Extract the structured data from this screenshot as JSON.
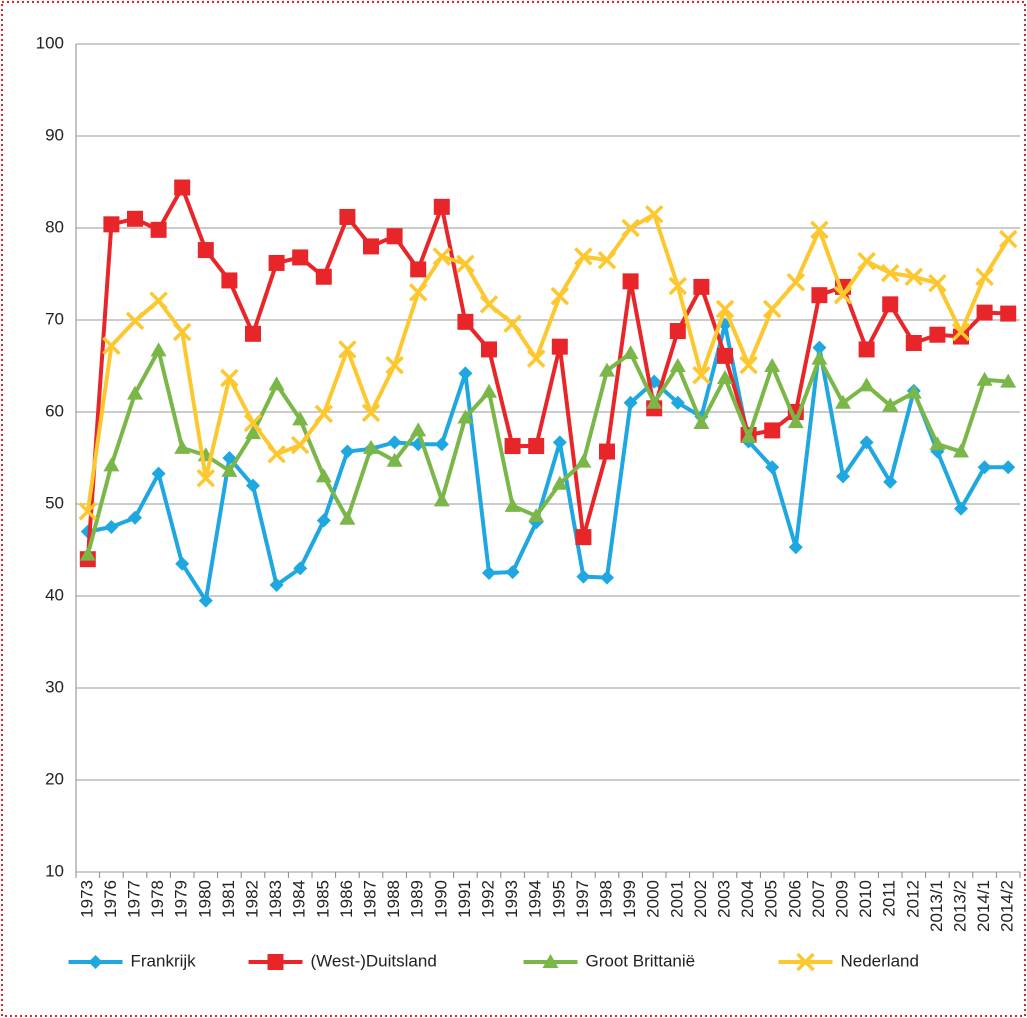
{
  "chart_data": {
    "type": "line",
    "categories": [
      "1973",
      "1976",
      "1977",
      "1978",
      "1979",
      "1980",
      "1981",
      "1982",
      "1983",
      "1984",
      "1985",
      "1986",
      "1987",
      "1988",
      "1989",
      "1990",
      "1991",
      "1992",
      "1993",
      "1994",
      "1995",
      "1997",
      "1998",
      "1999",
      "2000",
      "2001",
      "2002",
      "2003",
      "2004",
      "2005",
      "2006",
      "2007",
      "2009",
      "2010",
      "2011",
      "2012",
      "2013/1",
      "2013/2",
      "2014/1",
      "2014/2"
    ],
    "series": [
      {
        "name": "Frankrijk",
        "color": "#1ea7e1",
        "marker": "diamond",
        "values": [
          47,
          47.5,
          48.5,
          53.3,
          43.5,
          39.5,
          55,
          52,
          41.2,
          43,
          48.2,
          55.7,
          56,
          56.7,
          56.5,
          56.5,
          64.2,
          42.5,
          42.6,
          48,
          56.7,
          42.1,
          42,
          61,
          63.3,
          61,
          59.5,
          69.5,
          56.8,
          54,
          45.3,
          67,
          53,
          56.7,
          52.4,
          62.3,
          55.7,
          49.5,
          54,
          54
        ]
      },
      {
        "name": "(West-)Duitsland",
        "color": "#e8262a",
        "marker": "square",
        "values": [
          44,
          80.4,
          81,
          79.8,
          84.4,
          77.6,
          74.3,
          68.5,
          76.2,
          76.8,
          74.7,
          81.2,
          78,
          79.1,
          75.5,
          82.3,
          69.8,
          66.8,
          56.3,
          56.3,
          67.1,
          46.4,
          55.7,
          74.2,
          60.4,
          68.8,
          73.6,
          66.1,
          57.5,
          58,
          60,
          72.7,
          73.6,
          66.8,
          71.7,
          67.5,
          68.4,
          68.2,
          70.8,
          70.7
        ]
      },
      {
        "name": "Groot Brittanië",
        "color": "#7ab648",
        "marker": "triangle",
        "values": [
          44.5,
          54.2,
          62,
          66.7,
          56.1,
          55.3,
          53.6,
          57.7,
          63,
          59.2,
          53,
          48.4,
          56.1,
          54.7,
          58,
          50.4,
          59.4,
          62.2,
          49.8,
          48.7,
          52.2,
          54.6,
          64.5,
          66.4,
          61,
          65,
          58.8,
          63.7,
          57.3,
          65,
          58.9,
          65.8,
          61,
          62.9,
          60.7,
          62.1,
          56.5,
          55.7,
          63.5,
          63.3
        ]
      },
      {
        "name": "Nederland",
        "color": "#fdc82f",
        "marker": "x",
        "values": [
          49.2,
          67.2,
          69.9,
          72.1,
          68.7,
          52.8,
          63.7,
          58.8,
          55.4,
          56.4,
          59.8,
          66.8,
          59.9,
          65.1,
          73,
          76.9,
          76.1,
          71.7,
          69.6,
          65.8,
          72.6,
          76.9,
          76.5,
          80,
          81.5,
          73.7,
          64,
          71.2,
          65.1,
          71.2,
          74.1,
          79.8,
          72.7,
          76.4,
          75.1,
          74.7,
          74,
          68.7,
          74.7,
          78.8
        ]
      }
    ],
    "ylim": [
      10,
      100
    ],
    "yticks": [
      10,
      20,
      30,
      40,
      50,
      60,
      70,
      80,
      90,
      100
    ],
    "grid": true,
    "legend": "bottom"
  }
}
